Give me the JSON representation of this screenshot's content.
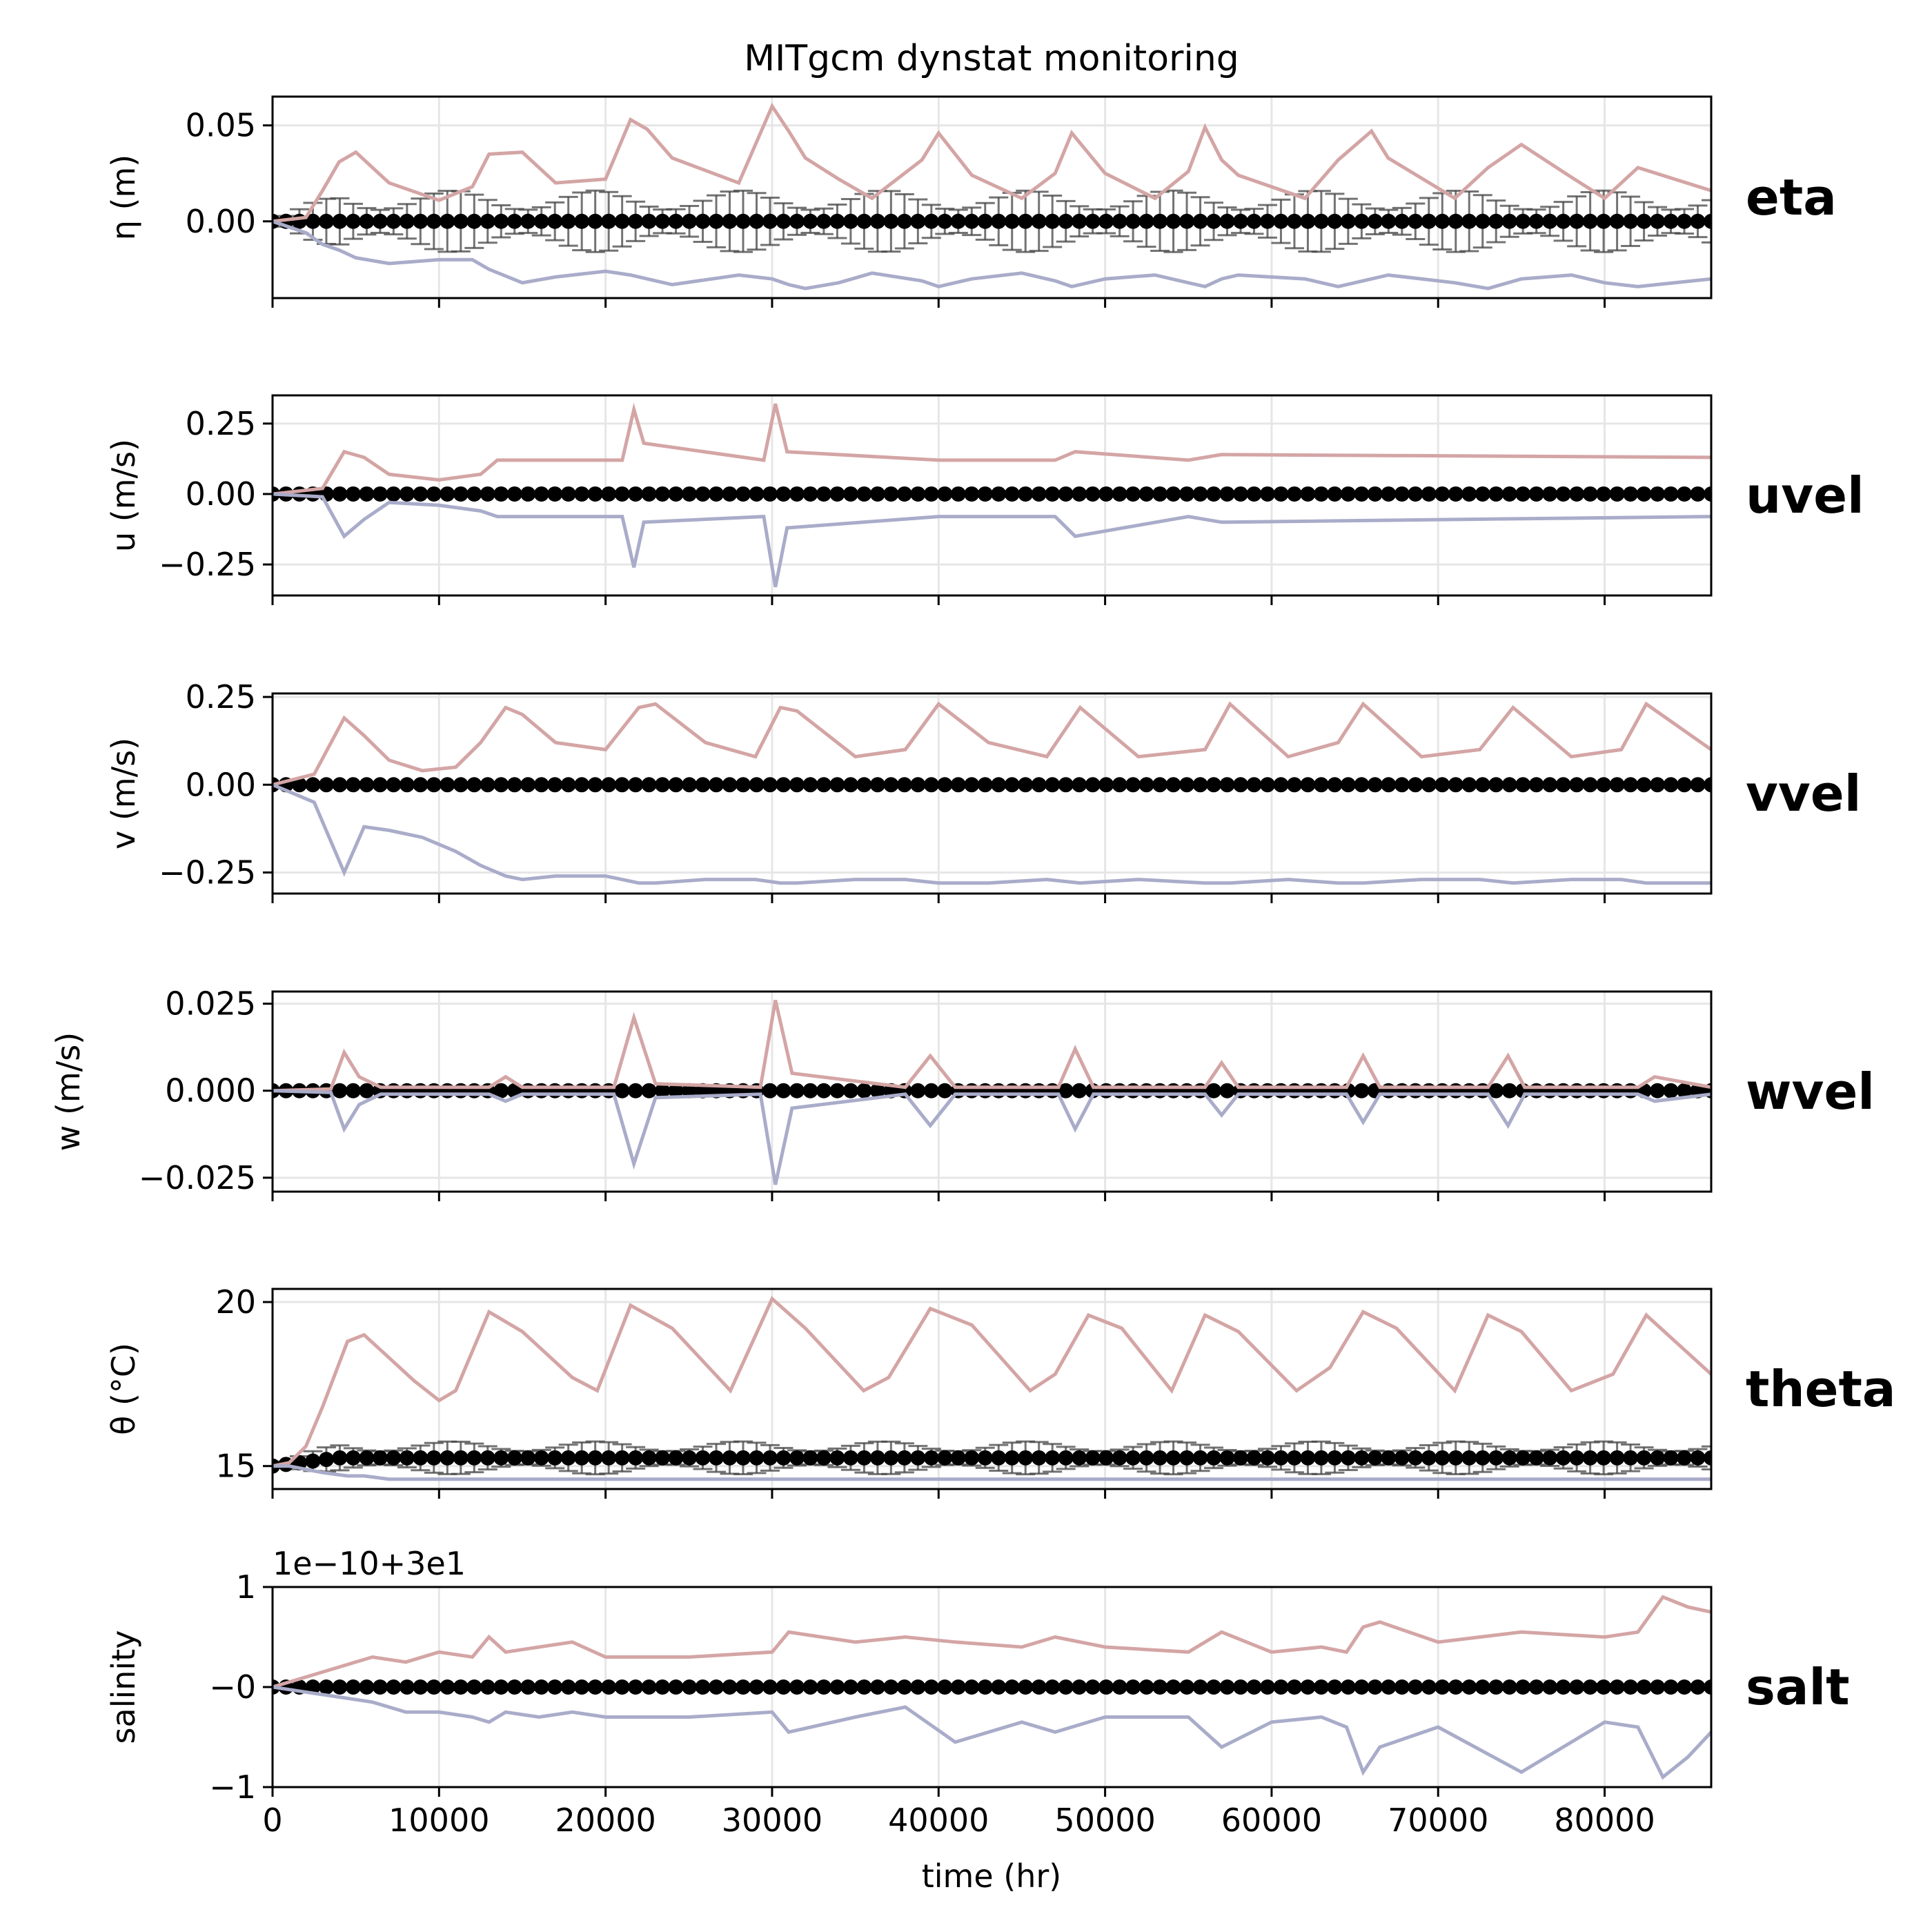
{
  "figure": {
    "title": "MITgcm dynstat monitoring",
    "xlabel": "time (hr)"
  },
  "colors": {
    "max_line": "#d4a5a5",
    "min_line": "#a9acc9",
    "mean_marker": "#000000",
    "std_bar": "#444444",
    "grid": "#e6e6e6"
  },
  "chart_data": [
    {
      "type": "line",
      "name": "eta",
      "ylabel": "η (m)",
      "xlim": [
        0,
        86400
      ],
      "ylim": [
        -0.04,
        0.065
      ],
      "yticks": [
        0.0,
        0.05
      ],
      "ytick_labels": [
        "0.00",
        "0.05"
      ],
      "xticks": [
        0,
        10000,
        20000,
        30000,
        40000,
        50000,
        60000,
        70000,
        80000
      ],
      "offset_text": "",
      "x": [
        0,
        2000,
        3000,
        4000,
        5000,
        7000,
        10000,
        12000,
        13000,
        15000,
        17000,
        20000,
        21500,
        22500,
        24000,
        28000,
        30000,
        31000,
        32000,
        34000,
        36000,
        39000,
        40000,
        42000,
        45000,
        47000,
        48000,
        50000,
        53000,
        55000,
        56000,
        57000,
        58000,
        62000,
        64000,
        66000,
        67000,
        71000,
        73000,
        75000,
        78000,
        80000,
        82000,
        86400
      ],
      "max": [
        0,
        0.002,
        0.016,
        0.031,
        0.036,
        0.02,
        0.011,
        0.018,
        0.035,
        0.036,
        0.02,
        0.022,
        0.053,
        0.048,
        0.033,
        0.02,
        0.06,
        0.047,
        0.033,
        0.022,
        0.012,
        0.032,
        0.046,
        0.024,
        0.012,
        0.025,
        0.046,
        0.025,
        0.012,
        0.026,
        0.049,
        0.032,
        0.024,
        0.012,
        0.032,
        0.047,
        0.033,
        0.012,
        0.028,
        0.04,
        0.023,
        0.012,
        0.028,
        0.016
      ],
      "min": [
        0,
        -0.006,
        -0.012,
        -0.015,
        -0.019,
        -0.022,
        -0.02,
        -0.02,
        -0.025,
        -0.032,
        -0.029,
        -0.026,
        -0.028,
        -0.03,
        -0.033,
        -0.028,
        -0.03,
        -0.033,
        -0.035,
        -0.032,
        -0.027,
        -0.031,
        -0.034,
        -0.03,
        -0.027,
        -0.031,
        -0.034,
        -0.03,
        -0.028,
        -0.032,
        -0.034,
        -0.03,
        -0.028,
        -0.03,
        -0.034,
        -0.03,
        -0.028,
        -0.032,
        -0.035,
        -0.03,
        -0.028,
        -0.032,
        -0.034,
        -0.03
      ],
      "mean_value": 0.0,
      "std_pattern": {
        "base": 0.011,
        "amplitude": 0.005,
        "period_hr": 8640
      }
    },
    {
      "type": "line",
      "name": "uvel",
      "ylabel": "u (m/s)",
      "xlim": [
        0,
        86400
      ],
      "ylim": [
        -0.36,
        0.35
      ],
      "yticks": [
        -0.25,
        0.0,
        0.25
      ],
      "ytick_labels": [
        "−0.25",
        "0.00",
        "0.25"
      ],
      "xticks": [
        0,
        10000,
        20000,
        30000,
        40000,
        50000,
        60000,
        70000,
        80000
      ],
      "offset_text": "",
      "x": [
        0,
        3000,
        4300,
        5500,
        7000,
        10000,
        12500,
        13500,
        21000,
        21700,
        22300,
        29500,
        30200,
        30900,
        40000,
        47000,
        48200,
        55000,
        57000,
        86400
      ],
      "max": [
        0,
        0.02,
        0.15,
        0.13,
        0.07,
        0.05,
        0.07,
        0.12,
        0.12,
        0.3,
        0.18,
        0.12,
        0.32,
        0.15,
        0.12,
        0.12,
        0.15,
        0.12,
        0.14,
        0.13
      ],
      "min": [
        0,
        -0.01,
        -0.15,
        -0.09,
        -0.03,
        -0.04,
        -0.06,
        -0.08,
        -0.08,
        -0.26,
        -0.1,
        -0.08,
        -0.33,
        -0.12,
        -0.08,
        -0.08,
        -0.15,
        -0.08,
        -0.1,
        -0.08
      ],
      "mean_value": 0.0,
      "std_pattern": {
        "base": 0.002,
        "amplitude": 0.0,
        "period_hr": 8640
      }
    },
    {
      "type": "line",
      "name": "vvel",
      "ylabel": "v (m/s)",
      "xlim": [
        0,
        86400
      ],
      "ylim": [
        -0.31,
        0.26
      ],
      "yticks": [
        -0.25,
        0.0,
        0.25
      ],
      "ytick_labels": [
        "−0.25",
        "0.00",
        "0.25"
      ],
      "xticks": [
        0,
        10000,
        20000,
        30000,
        40000,
        50000,
        60000,
        70000,
        80000
      ],
      "offset_text": "",
      "x": [
        0,
        2500,
        4300,
        5500,
        7000,
        9000,
        11000,
        12500,
        14000,
        15000,
        17000,
        20000,
        22000,
        23000,
        26000,
        29000,
        30500,
        31500,
        35000,
        38000,
        40000,
        43000,
        46500,
        48500,
        52000,
        56000,
        57500,
        61000,
        64000,
        65500,
        69000,
        72500,
        74500,
        78000,
        81000,
        82500,
        86400
      ],
      "max": [
        0,
        0.03,
        0.19,
        0.14,
        0.07,
        0.04,
        0.05,
        0.12,
        0.22,
        0.2,
        0.12,
        0.1,
        0.22,
        0.23,
        0.12,
        0.08,
        0.22,
        0.21,
        0.08,
        0.1,
        0.23,
        0.12,
        0.08,
        0.22,
        0.08,
        0.1,
        0.23,
        0.08,
        0.12,
        0.23,
        0.08,
        0.1,
        0.22,
        0.08,
        0.1,
        0.23,
        0.1
      ],
      "min": [
        0,
        -0.05,
        -0.25,
        -0.12,
        -0.13,
        -0.15,
        -0.19,
        -0.23,
        -0.26,
        -0.27,
        -0.26,
        -0.26,
        -0.28,
        -0.28,
        -0.27,
        -0.27,
        -0.28,
        -0.28,
        -0.27,
        -0.27,
        -0.28,
        -0.28,
        -0.27,
        -0.28,
        -0.27,
        -0.28,
        -0.28,
        -0.27,
        -0.28,
        -0.28,
        -0.27,
        -0.27,
        -0.28,
        -0.27,
        -0.27,
        -0.28,
        -0.28
      ],
      "mean_value": 0.0,
      "std_pattern": {
        "base": 0.004,
        "amplitude": 0.003,
        "period_hr": 8640
      }
    },
    {
      "type": "line",
      "name": "wvel",
      "ylabel": "w (m/s)",
      "xlim": [
        0,
        86400
      ],
      "ylim": [
        -0.029,
        0.0285
      ],
      "yticks": [
        -0.025,
        0.0,
        0.025
      ],
      "ytick_labels": [
        "−0.025",
        "0.000",
        "0.025"
      ],
      "xticks": [
        0,
        10000,
        20000,
        30000,
        40000,
        50000,
        60000,
        70000,
        80000
      ],
      "offset_text": "",
      "x": [
        0,
        3500,
        4300,
        5200,
        6500,
        13000,
        14000,
        15000,
        20500,
        21700,
        23000,
        29300,
        30200,
        31200,
        38000,
        39500,
        41000,
        47200,
        48200,
        49300,
        56000,
        57000,
        58000,
        64500,
        65500,
        66500,
        73000,
        74200,
        75200,
        82000,
        83000,
        86400
      ],
      "max": [
        0,
        0.0005,
        0.011,
        0.004,
        0.001,
        0.001,
        0.004,
        0.001,
        0.001,
        0.021,
        0.002,
        0.001,
        0.026,
        0.005,
        0.001,
        0.01,
        0.001,
        0.001,
        0.012,
        0.001,
        0.001,
        0.008,
        0.001,
        0.001,
        0.01,
        0.001,
        0.001,
        0.01,
        0.001,
        0.001,
        0.004,
        0.001
      ],
      "min": [
        0,
        -0.0005,
        -0.011,
        -0.004,
        -0.001,
        -0.001,
        -0.003,
        -0.001,
        -0.001,
        -0.021,
        -0.002,
        -0.001,
        -0.027,
        -0.005,
        -0.001,
        -0.01,
        -0.001,
        -0.001,
        -0.011,
        -0.001,
        -0.001,
        -0.007,
        -0.001,
        -0.001,
        -0.009,
        -0.001,
        -0.001,
        -0.01,
        -0.001,
        -0.001,
        -0.003,
        -0.001
      ],
      "mean_value": 0.0,
      "std_pattern": {
        "base": 0.0002,
        "amplitude": 0.0,
        "period_hr": 8640
      }
    },
    {
      "type": "line",
      "name": "theta",
      "ylabel": "θ (°C)",
      "xlim": [
        0,
        86400
      ],
      "ylim": [
        14.3,
        20.4
      ],
      "yticks": [
        15,
        20
      ],
      "ytick_labels": [
        "15",
        "20"
      ],
      "xticks": [
        0,
        10000,
        20000,
        30000,
        40000,
        50000,
        60000,
        70000,
        80000
      ],
      "offset_text": "",
      "x": [
        0,
        1000,
        2000,
        3000,
        4500,
        5500,
        7000,
        8500,
        10000,
        11000,
        13000,
        15000,
        18000,
        19500,
        21500,
        24000,
        27500,
        30000,
        32000,
        35500,
        37000,
        39500,
        42000,
        45500,
        47000,
        49000,
        51000,
        54000,
        56000,
        58000,
        61500,
        63500,
        65500,
        67500,
        71000,
        73000,
        75000,
        78000,
        80500,
        82500,
        86400
      ],
      "max": [
        15,
        15.1,
        15.6,
        16.8,
        18.8,
        19.0,
        18.3,
        17.6,
        17.0,
        17.3,
        19.7,
        19.1,
        17.7,
        17.3,
        19.9,
        19.2,
        17.3,
        20.1,
        19.2,
        17.3,
        17.7,
        19.8,
        19.3,
        17.3,
        17.8,
        19.6,
        19.2,
        17.3,
        19.6,
        19.1,
        17.3,
        18.0,
        19.7,
        19.2,
        17.3,
        19.6,
        19.1,
        17.3,
        17.8,
        19.6,
        17.8
      ],
      "min": [
        15,
        15.0,
        14.9,
        14.8,
        14.7,
        14.7,
        14.6,
        14.6,
        14.6,
        14.6,
        14.6,
        14.6,
        14.6,
        14.6,
        14.6,
        14.6,
        14.6,
        14.6,
        14.6,
        14.6,
        14.6,
        14.6,
        14.6,
        14.6,
        14.6,
        14.6,
        14.6,
        14.6,
        14.6,
        14.6,
        14.6,
        14.6,
        14.6,
        14.6,
        14.6,
        14.6,
        14.6,
        14.6,
        14.6,
        14.6,
        14.6
      ],
      "mean_value": 15.25,
      "std_pattern": {
        "base": 0.35,
        "amplitude": 0.15,
        "period_hr": 8640
      }
    },
    {
      "type": "line",
      "name": "salt",
      "ylabel": "salinity",
      "xlim": [
        0,
        86400
      ],
      "ylim": [
        -1.0,
        1.0
      ],
      "yticks": [
        -1,
        0,
        1
      ],
      "ytick_labels": [
        "−1",
        "−0",
        "1"
      ],
      "xticks": [
        0,
        10000,
        20000,
        30000,
        40000,
        50000,
        60000,
        70000,
        80000
      ],
      "offset_text": "1e−10+3e1",
      "x": [
        0,
        2000,
        4000,
        6000,
        8000,
        10000,
        12000,
        13000,
        14000,
        16000,
        18000,
        20000,
        25000,
        30000,
        31000,
        35000,
        38000,
        41000,
        45000,
        47000,
        50000,
        55000,
        57000,
        60000,
        63000,
        64500,
        65500,
        66500,
        70000,
        75000,
        80000,
        82000,
        83500,
        85000,
        86400
      ],
      "max": [
        0,
        0.1,
        0.2,
        0.3,
        0.25,
        0.35,
        0.3,
        0.5,
        0.35,
        0.4,
        0.45,
        0.3,
        0.3,
        0.35,
        0.55,
        0.45,
        0.5,
        0.45,
        0.4,
        0.5,
        0.4,
        0.35,
        0.55,
        0.35,
        0.4,
        0.35,
        0.6,
        0.65,
        0.45,
        0.55,
        0.5,
        0.55,
        0.9,
        0.8,
        0.75
      ],
      "min": [
        0,
        -0.05,
        -0.1,
        -0.15,
        -0.25,
        -0.25,
        -0.3,
        -0.35,
        -0.25,
        -0.3,
        -0.25,
        -0.3,
        -0.3,
        -0.25,
        -0.45,
        -0.3,
        -0.2,
        -0.55,
        -0.35,
        -0.45,
        -0.3,
        -0.3,
        -0.6,
        -0.35,
        -0.3,
        -0.4,
        -0.85,
        -0.6,
        -0.4,
        -0.85,
        -0.35,
        -0.4,
        -0.9,
        -0.7,
        -0.45
      ],
      "mean_value": 0.0,
      "std_pattern": {
        "base": 0.02,
        "amplitude": 0.01,
        "period_hr": 8640
      }
    }
  ]
}
